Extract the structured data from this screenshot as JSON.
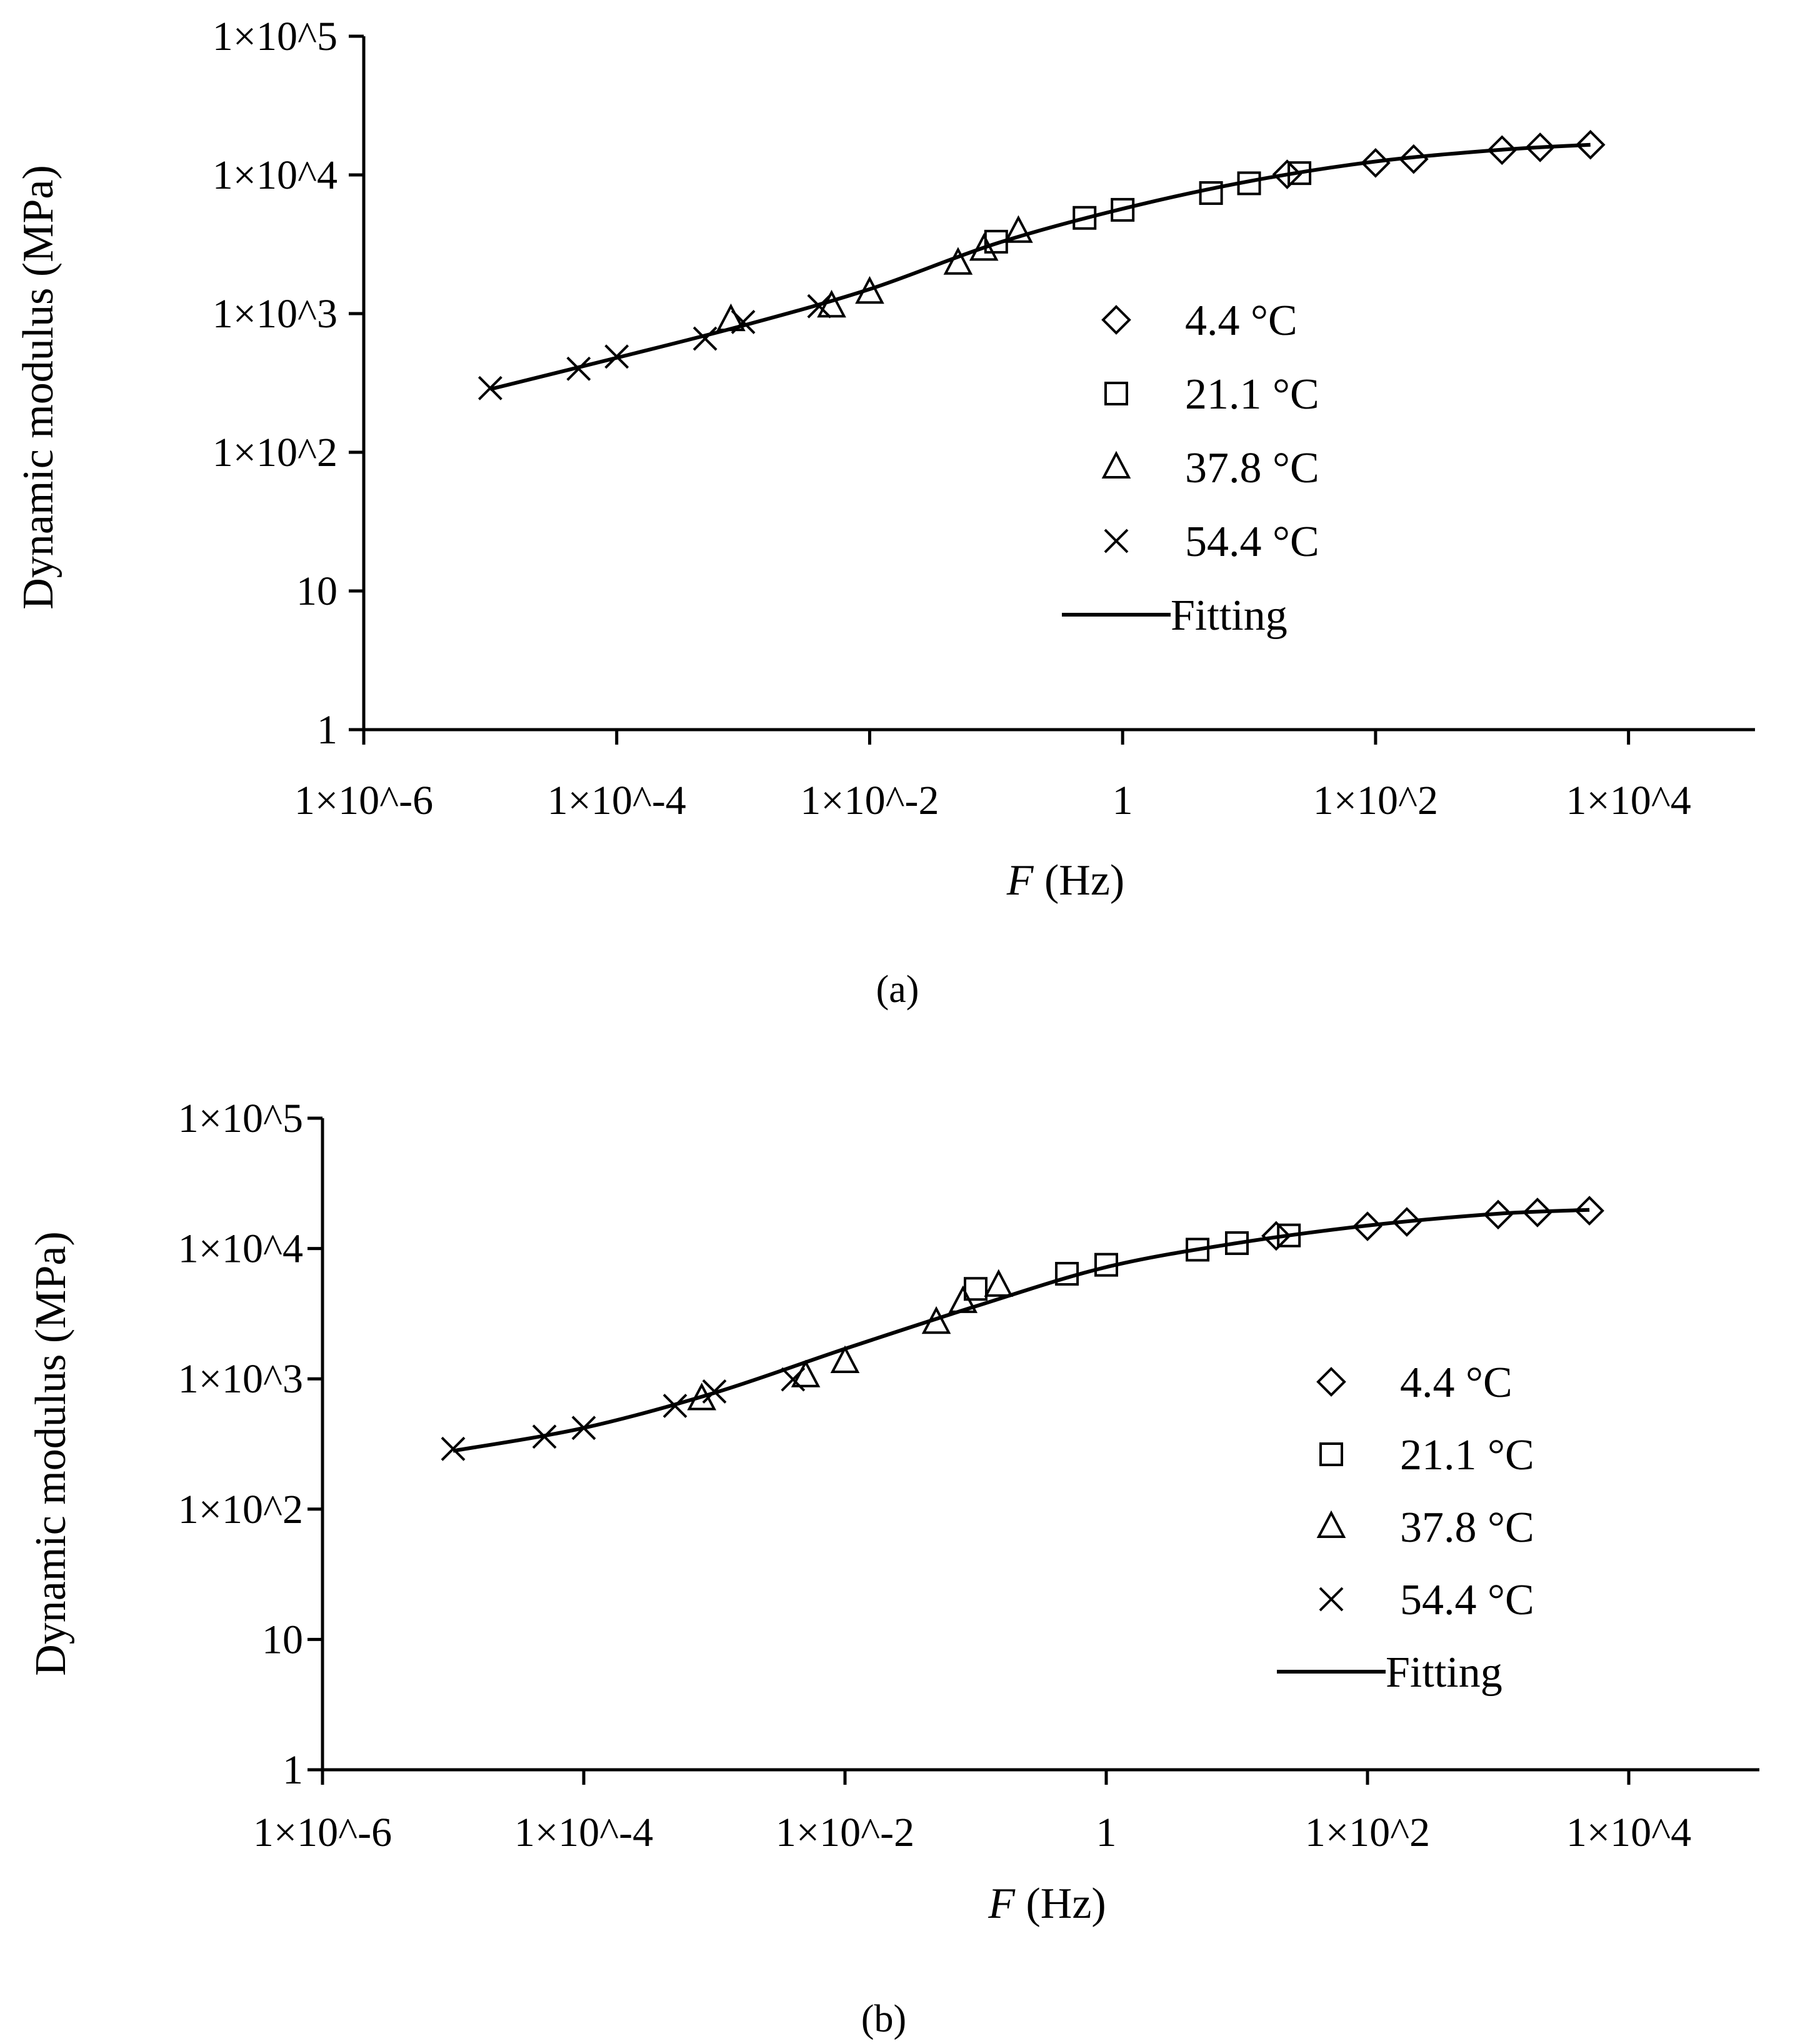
{
  "chart_data": [
    {
      "type": "scatter",
      "caption": "(a)",
      "xlabel_italic": "F",
      "xlabel_rest": " (Hz)",
      "ylabel": "Dynamic modulus (MPa)",
      "xscale": "log",
      "yscale": "log",
      "xlim": [
        1e-06,
        100000.0
      ],
      "ylim": [
        1,
        100000
      ],
      "grid": false,
      "legend_position": "center-right",
      "x_ticks": [
        {
          "value": 1e-06,
          "label": "1×10^-6"
        },
        {
          "value": 0.0001,
          "label": "1×10^-4"
        },
        {
          "value": 0.01,
          "label": "1×10^-2"
        },
        {
          "value": 1,
          "label": "1"
        },
        {
          "value": 100,
          "label": "1×10^2"
        },
        {
          "value": 10000,
          "label": "1×10^4"
        }
      ],
      "y_ticks": [
        {
          "value": 1,
          "label": "1"
        },
        {
          "value": 10,
          "label": "10"
        },
        {
          "value": 100,
          "label": "1×10^2"
        },
        {
          "value": 1000,
          "label": "1×10^3"
        },
        {
          "value": 10000,
          "label": "1×10^4"
        },
        {
          "value": 100000,
          "label": "1×10^5"
        }
      ],
      "series": [
        {
          "name": "4.4 °C",
          "marker": "diamond",
          "x": [
            20,
            100,
            200,
            1000,
            2000,
            5000
          ],
          "y": [
            10100,
            12200,
            13000,
            15100,
            15800,
            16500
          ]
        },
        {
          "name": "21.1 °C",
          "marker": "square",
          "x": [
            0.1,
            0.5,
            1,
            5,
            10,
            25
          ],
          "y": [
            3300,
            4900,
            5600,
            7400,
            8700,
            10300
          ]
        },
        {
          "name": "37.8 °C",
          "marker": "triangle",
          "x": [
            0.0008,
            0.005,
            0.01,
            0.05,
            0.08,
            0.15
          ],
          "y": [
            900,
            1130,
            1420,
            2300,
            2900,
            3900
          ]
        },
        {
          "name": "54.4 °C",
          "marker": "cross",
          "x": [
            1e-05,
            5e-05,
            0.0001,
            0.0005,
            0.001,
            0.004
          ],
          "y": [
            290,
            400,
            490,
            660,
            870,
            1130
          ]
        },
        {
          "name": "Fitting",
          "marker": "line",
          "x": [
            1e-05,
            0.0001,
            0.001,
            0.01,
            0.1,
            1,
            10,
            100,
            1000,
            5000
          ],
          "y": [
            285,
            480,
            820,
            1500,
            3200,
            5700,
            9000,
            12500,
            15200,
            16500
          ]
        }
      ]
    },
    {
      "type": "scatter",
      "caption": "(b)",
      "xlabel_italic": "F",
      "xlabel_rest": " (Hz)",
      "ylabel": "Dynamic modulus (MPa)",
      "xscale": "log",
      "yscale": "log",
      "xlim": [
        1e-06,
        100000.0
      ],
      "ylim": [
        1,
        100000
      ],
      "grid": false,
      "legend_position": "center-right",
      "x_ticks": [
        {
          "value": 1e-06,
          "label": "1×10^-6"
        },
        {
          "value": 0.0001,
          "label": "1×10^-4"
        },
        {
          "value": 0.01,
          "label": "1×10^-2"
        },
        {
          "value": 1,
          "label": "1"
        },
        {
          "value": 100,
          "label": "1×10^2"
        },
        {
          "value": 10000,
          "label": "1×10^4"
        }
      ],
      "y_ticks": [
        {
          "value": 1,
          "label": "1"
        },
        {
          "value": 10,
          "label": "10"
        },
        {
          "value": 100,
          "label": "1×10^2"
        },
        {
          "value": 1000,
          "label": "1×10^3"
        },
        {
          "value": 10000,
          "label": "1×10^4"
        },
        {
          "value": 100000,
          "label": "1×10^5"
        }
      ],
      "series": [
        {
          "name": "4.4 °C",
          "marker": "diamond",
          "x": [
            20,
            100,
            200,
            1000,
            2000,
            5000
          ],
          "y": [
            12500,
            14800,
            16000,
            18200,
            18900,
            19500
          ]
        },
        {
          "name": "21.1 °C",
          "marker": "square",
          "x": [
            0.1,
            0.5,
            1,
            5,
            10,
            25
          ],
          "y": [
            4900,
            6400,
            7500,
            9800,
            11000,
            12600
          ]
        },
        {
          "name": "37.8 °C",
          "marker": "triangle",
          "x": [
            0.0008,
            0.005,
            0.01,
            0.05,
            0.08,
            0.15
          ],
          "y": [
            700,
            1050,
            1350,
            2700,
            3900,
            5200
          ]
        },
        {
          "name": "54.4 °C",
          "marker": "cross",
          "x": [
            1e-05,
            5e-05,
            0.0001,
            0.0005,
            0.001,
            0.004
          ],
          "y": [
            290,
            360,
            420,
            620,
            800,
            990
          ]
        },
        {
          "name": "Fitting",
          "marker": "line",
          "x": [
            1e-05,
            0.0001,
            0.001,
            0.01,
            0.1,
            1,
            10,
            100,
            1000,
            5000
          ],
          "y": [
            280,
            420,
            780,
            1700,
            3600,
            7200,
            11000,
            15000,
            18500,
            19800
          ]
        }
      ]
    }
  ]
}
